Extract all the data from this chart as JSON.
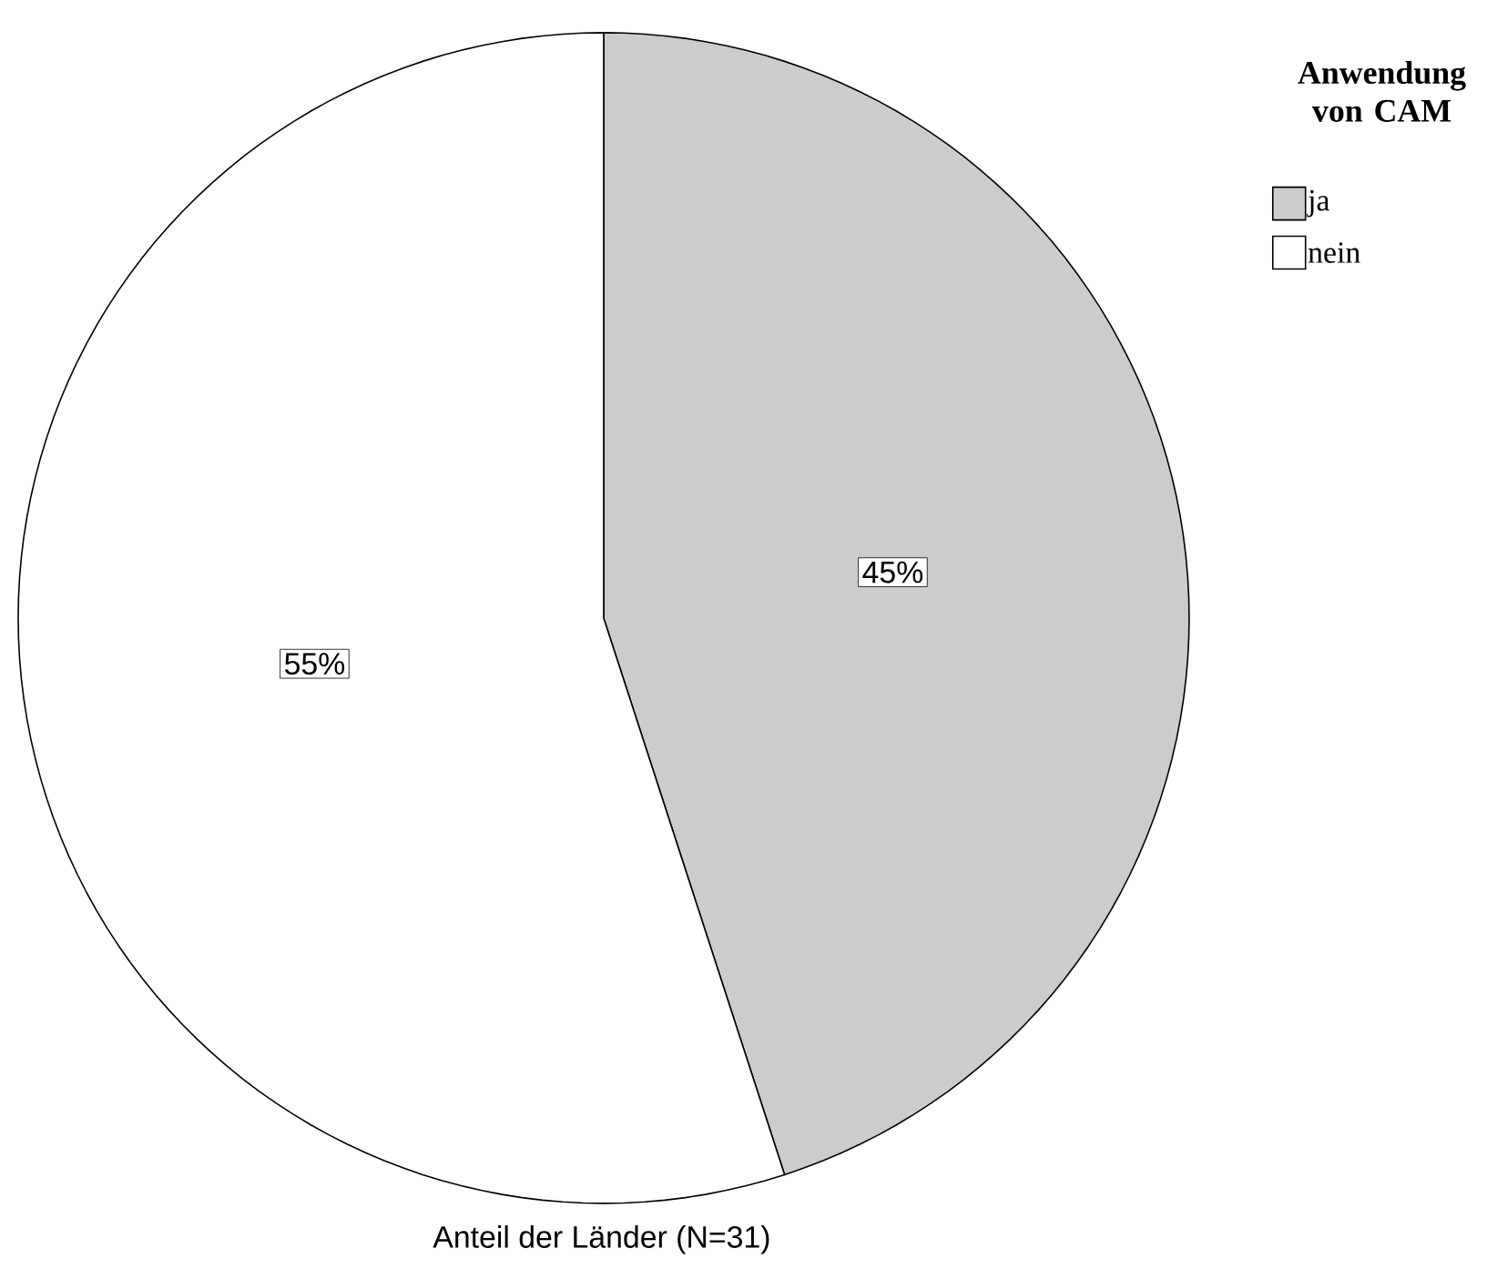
{
  "chart_data": {
    "type": "pie",
    "categories": [
      "ja",
      "nein"
    ],
    "values": [
      45,
      55
    ],
    "colors": [
      "#cccccc",
      "#ffffff"
    ],
    "value_labels": [
      "45%",
      "55%"
    ],
    "legend": "top right",
    "legend_title": "Anwendung von CAM",
    "xlabel": "Anteil der Länder (N=31)"
  }
}
